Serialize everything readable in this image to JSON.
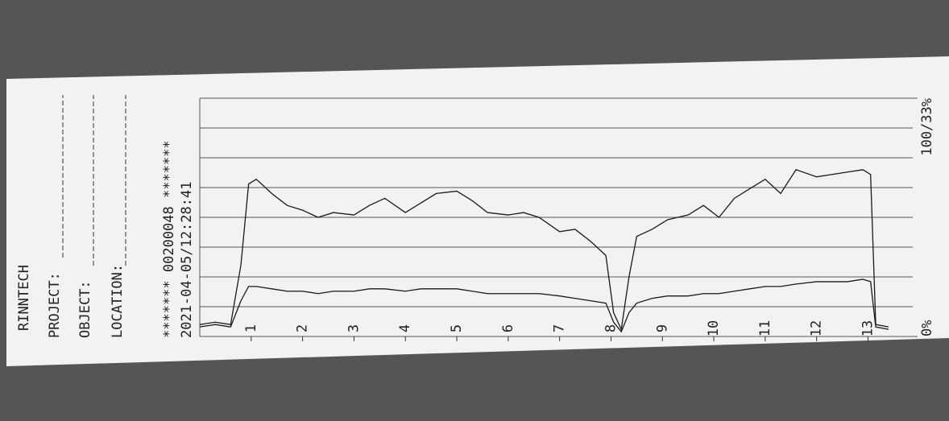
{
  "printout": {
    "brand": "RINNTECH",
    "fields": [
      "PROJECT:",
      "OBJECT:",
      "LOCATION:"
    ],
    "id_line": "******* 00200048 *******",
    "timestamp": "2021-04-05/12:28:41"
  },
  "chart_data": {
    "type": "line",
    "x": [
      0,
      0.3,
      0.6,
      0.8,
      0.95,
      1.1,
      1.4,
      1.7,
      2,
      2.3,
      2.6,
      3,
      3.3,
      3.6,
      4,
      4.3,
      4.6,
      5,
      5.3,
      5.6,
      6,
      6.3,
      6.6,
      7,
      7.3,
      7.6,
      7.9,
      8.05,
      8.2,
      8.35,
      8.5,
      8.8,
      9.1,
      9.5,
      9.8,
      10.1,
      10.4,
      10.7,
      11,
      11.3,
      11.6,
      12,
      12.3,
      12.6,
      12.9,
      13.05,
      13.15,
      13.4
    ],
    "series": [
      {
        "color": "#1a1a1a",
        "values": [
          5,
          6,
          5,
          30,
          64,
          66,
          60,
          55,
          53,
          50,
          52,
          51,
          55,
          58,
          52,
          56,
          60,
          61,
          57,
          52,
          51,
          52,
          50,
          44,
          45,
          40,
          34,
          10,
          3,
          25,
          42,
          45,
          49,
          51,
          55,
          50,
          58,
          62,
          66,
          60,
          70,
          67,
          68,
          69,
          70,
          68,
          5,
          4
        ]
      },
      {
        "color": "#1a1a1a",
        "values": [
          4,
          5,
          4,
          15,
          21,
          21,
          20,
          19,
          19,
          18,
          19,
          19,
          20,
          20,
          19,
          20,
          20,
          20,
          19,
          18,
          18,
          18,
          18,
          17,
          16,
          15,
          14,
          6,
          2,
          10,
          14,
          16,
          17,
          17,
          18,
          18,
          19,
          20,
          21,
          21,
          22,
          23,
          23,
          23,
          24,
          23,
          4,
          3
        ]
      }
    ],
    "xlim": [
      0,
      13.4
    ],
    "xticks": [
      1,
      2,
      3,
      4,
      5,
      6,
      7,
      8,
      9,
      10,
      11,
      12,
      13
    ],
    "ylim": [
      0,
      100
    ],
    "yticks": [
      {
        "value": 0,
        "label": "0%"
      },
      {
        "value": 100,
        "label": "100/33%"
      }
    ],
    "ygrid": [
      0,
      12.5,
      25,
      37.5,
      50,
      62.5,
      75,
      87.5,
      100
    ]
  }
}
